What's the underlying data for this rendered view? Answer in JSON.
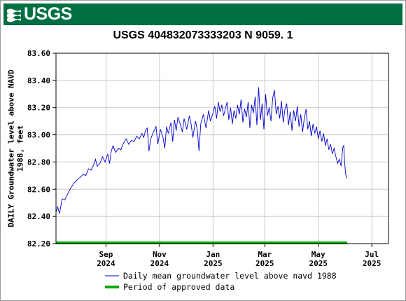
{
  "banner": {
    "logo_text": "USGS",
    "color": "#006f41"
  },
  "chart_data": {
    "type": "line",
    "title": "USGS 404832073333203 N  9059. 1",
    "ylabel_line1": "DAILY Groundwater level above NAVD",
    "ylabel_line2": "1988, feet",
    "ylim": [
      82.2,
      83.6
    ],
    "yticks": [
      "82.20",
      "82.40",
      "82.60",
      "82.80",
      "83.00",
      "83.20",
      "83.40",
      "83.60"
    ],
    "xlim": [
      "2024-07-06",
      "2025-07-20"
    ],
    "xticks": [
      {
        "date": "2024-09-01",
        "month": "Sep",
        "year": "2024"
      },
      {
        "date": "2024-11-01",
        "month": "Nov",
        "year": "2024"
      },
      {
        "date": "2025-01-01",
        "month": "Jan",
        "year": "2025"
      },
      {
        "date": "2025-03-01",
        "month": "Mar",
        "year": "2025"
      },
      {
        "date": "2025-05-01",
        "month": "May",
        "year": "2025"
      },
      {
        "date": "2025-07-01",
        "month": "Jul",
        "year": "2025"
      }
    ],
    "grid": true,
    "series": [
      {
        "name": "Daily mean groundwater level above navd 1988",
        "color": "#0000cc",
        "points": [
          [
            "2024-07-06",
            82.43
          ],
          [
            "2024-07-08",
            82.47
          ],
          [
            "2024-07-10",
            82.42
          ],
          [
            "2024-07-13",
            82.53
          ],
          [
            "2024-07-16",
            82.52
          ],
          [
            "2024-07-19",
            82.56
          ],
          [
            "2024-07-22",
            82.6
          ],
          [
            "2024-07-26",
            82.64
          ],
          [
            "2024-07-30",
            82.67
          ],
          [
            "2024-08-03",
            82.69
          ],
          [
            "2024-08-06",
            82.71
          ],
          [
            "2024-08-09",
            82.7
          ],
          [
            "2024-08-12",
            82.75
          ],
          [
            "2024-08-15",
            82.74
          ],
          [
            "2024-08-18",
            82.78
          ],
          [
            "2024-08-20",
            82.82
          ],
          [
            "2024-08-22",
            82.77
          ],
          [
            "2024-08-25",
            82.79
          ],
          [
            "2024-08-28",
            82.84
          ],
          [
            "2024-08-31",
            82.8
          ],
          [
            "2024-09-03",
            82.86
          ],
          [
            "2024-09-05",
            82.79
          ],
          [
            "2024-09-07",
            82.88
          ],
          [
            "2024-09-09",
            82.92
          ],
          [
            "2024-09-12",
            82.87
          ],
          [
            "2024-09-15",
            82.9
          ],
          [
            "2024-09-18",
            82.89
          ],
          [
            "2024-09-21",
            82.94
          ],
          [
            "2024-09-24",
            82.97
          ],
          [
            "2024-09-27",
            82.93
          ],
          [
            "2024-09-30",
            82.96
          ],
          [
            "2024-10-03",
            82.95
          ],
          [
            "2024-10-06",
            82.99
          ],
          [
            "2024-10-09",
            82.97
          ],
          [
            "2024-10-12",
            83.01
          ],
          [
            "2024-10-14",
            82.98
          ],
          [
            "2024-10-16",
            83.03
          ],
          [
            "2024-10-18",
            83.05
          ],
          [
            "2024-10-20",
            82.88
          ],
          [
            "2024-10-22",
            82.97
          ],
          [
            "2024-10-25",
            83.02
          ],
          [
            "2024-10-28",
            83.06
          ],
          [
            "2024-10-30",
            82.93
          ],
          [
            "2024-11-02",
            83.04
          ],
          [
            "2024-11-05",
            82.98
          ],
          [
            "2024-11-07",
            82.9
          ],
          [
            "2024-11-09",
            83.06
          ],
          [
            "2024-11-11",
            83.01
          ],
          [
            "2024-11-14",
            83.09
          ],
          [
            "2024-11-16",
            82.95
          ],
          [
            "2024-11-18",
            83.11
          ],
          [
            "2024-11-20",
            83.03
          ],
          [
            "2024-11-22",
            83.13
          ],
          [
            "2024-11-25",
            83.07
          ],
          [
            "2024-11-27",
            83.02
          ],
          [
            "2024-11-29",
            83.12
          ],
          [
            "2024-12-02",
            83.04
          ],
          [
            "2024-12-05",
            83.14
          ],
          [
            "2024-12-07",
            83.08
          ],
          [
            "2024-12-09",
            82.98
          ],
          [
            "2024-12-12",
            83.1
          ],
          [
            "2024-12-14",
            83.04
          ],
          [
            "2024-12-16",
            82.88
          ],
          [
            "2024-12-18",
            83.08
          ],
          [
            "2024-12-21",
            83.15
          ],
          [
            "2024-12-24",
            83.05
          ],
          [
            "2024-12-27",
            83.18
          ],
          [
            "2024-12-29",
            83.1
          ],
          [
            "2025-01-01",
            83.16
          ],
          [
            "2025-01-03",
            83.21
          ],
          [
            "2025-01-05",
            83.12
          ],
          [
            "2025-01-07",
            83.24
          ],
          [
            "2025-01-09",
            83.17
          ],
          [
            "2025-01-11",
            83.22
          ],
          [
            "2025-01-13",
            83.14
          ],
          [
            "2025-01-15",
            83.19
          ],
          [
            "2025-01-17",
            83.24
          ],
          [
            "2025-01-19",
            83.11
          ],
          [
            "2025-01-21",
            83.2
          ],
          [
            "2025-01-23",
            83.08
          ],
          [
            "2025-01-25",
            83.18
          ],
          [
            "2025-01-27",
            83.12
          ],
          [
            "2025-01-29",
            83.22
          ],
          [
            "2025-01-31",
            83.15
          ],
          [
            "2025-02-02",
            83.26
          ],
          [
            "2025-02-04",
            83.09
          ],
          [
            "2025-02-06",
            83.19
          ],
          [
            "2025-02-08",
            83.13
          ],
          [
            "2025-02-10",
            83.24
          ],
          [
            "2025-02-12",
            83.05
          ],
          [
            "2025-02-14",
            83.22
          ],
          [
            "2025-02-16",
            83.16
          ],
          [
            "2025-02-18",
            83.28
          ],
          [
            "2025-02-20",
            83.07
          ],
          [
            "2025-02-22",
            83.35
          ],
          [
            "2025-02-24",
            83.11
          ],
          [
            "2025-02-26",
            83.23
          ],
          [
            "2025-02-28",
            83.04
          ],
          [
            "2025-03-02",
            83.3
          ],
          [
            "2025-03-04",
            83.14
          ],
          [
            "2025-03-06",
            83.2
          ],
          [
            "2025-03-08",
            83.1
          ],
          [
            "2025-03-10",
            83.27
          ],
          [
            "2025-03-12",
            83.33
          ],
          [
            "2025-03-14",
            83.15
          ],
          [
            "2025-03-16",
            83.21
          ],
          [
            "2025-03-18",
            83.12
          ],
          [
            "2025-03-20",
            83.25
          ],
          [
            "2025-03-22",
            83.09
          ],
          [
            "2025-03-24",
            83.19
          ],
          [
            "2025-03-26",
            83.23
          ],
          [
            "2025-03-28",
            83.07
          ],
          [
            "2025-03-30",
            83.17
          ],
          [
            "2025-04-01",
            83.03
          ],
          [
            "2025-04-03",
            83.18
          ],
          [
            "2025-04-05",
            83.1
          ],
          [
            "2025-04-07",
            83.21
          ],
          [
            "2025-04-09",
            83.06
          ],
          [
            "2025-04-11",
            83.15
          ],
          [
            "2025-04-13",
            83.02
          ],
          [
            "2025-04-15",
            83.12
          ],
          [
            "2025-04-17",
            83.19
          ],
          [
            "2025-04-19",
            83.04
          ],
          [
            "2025-04-21",
            83.1
          ],
          [
            "2025-04-23",
            82.99
          ],
          [
            "2025-04-25",
            83.08
          ],
          [
            "2025-04-27",
            83.01
          ],
          [
            "2025-04-29",
            83.06
          ],
          [
            "2025-05-01",
            82.97
          ],
          [
            "2025-05-03",
            83.03
          ],
          [
            "2025-05-05",
            82.95
          ],
          [
            "2025-05-07",
            83.01
          ],
          [
            "2025-05-09",
            82.92
          ],
          [
            "2025-05-11",
            82.97
          ],
          [
            "2025-05-13",
            82.89
          ],
          [
            "2025-05-15",
            82.93
          ],
          [
            "2025-05-17",
            82.86
          ],
          [
            "2025-05-19",
            82.9
          ],
          [
            "2025-05-21",
            82.84
          ],
          [
            "2025-05-23",
            82.79
          ],
          [
            "2025-05-25",
            82.82
          ],
          [
            "2025-05-27",
            82.77
          ],
          [
            "2025-05-29",
            82.91
          ],
          [
            "2025-05-30",
            82.92
          ],
          [
            "2025-05-31",
            82.8
          ],
          [
            "2025-06-01",
            82.72
          ],
          [
            "2025-06-02",
            82.69
          ],
          [
            "2025-06-03",
            82.68
          ]
        ]
      },
      {
        "name": "Period of approved data",
        "color": "#00aa00",
        "range": [
          "2024-07-06",
          "2025-06-03"
        ],
        "level": 82.2
      }
    ]
  }
}
